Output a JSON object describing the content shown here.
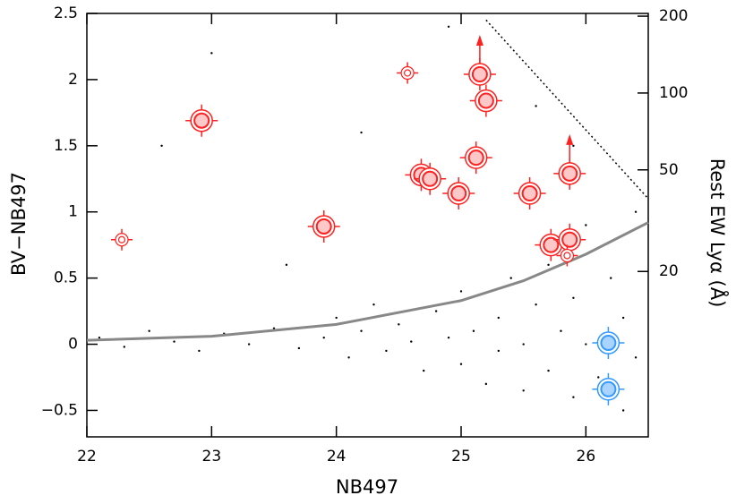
{
  "chart_data": {
    "type": "scatter",
    "xlabel": "NB497",
    "ylabel": "BV−NB497",
    "y2label": "Rest EW Lyα (Å)",
    "xlim": [
      22,
      26.5
    ],
    "ylim": [
      -0.7,
      2.5
    ],
    "xticks": [
      22,
      23,
      24,
      25,
      26
    ],
    "yticks": [
      {
        "value": -0.5,
        "label": "−0.5"
      },
      0,
      0.5,
      1,
      1.5,
      2,
      2.5
    ],
    "y2lim": [
      4.5,
      205
    ],
    "y2log": true,
    "y2ticks": [
      20,
      50,
      100,
      200
    ],
    "series": [
      {
        "type": "scatter",
        "marker": "dot",
        "color": "#000000",
        "x": [
          22.1,
          22.3,
          22.5,
          22.7,
          22.9,
          23.1,
          23.3,
          23.5,
          23.7,
          23.9,
          24.0,
          24.1,
          24.2,
          24.3,
          24.4,
          24.5,
          24.6,
          24.7,
          24.8,
          24.9,
          25.0,
          25.0,
          25.1,
          25.2,
          25.3,
          25.3,
          25.4,
          25.5,
          25.5,
          25.6,
          25.7,
          25.7,
          25.8,
          25.9,
          25.9,
          26.0,
          26.0,
          26.1,
          26.2,
          26.3,
          26.3,
          26.4,
          26.4,
          23.0,
          24.2,
          24.9,
          25.6,
          22.6,
          23.6,
          25.9
        ],
        "values": [
          0.05,
          -0.02,
          0.1,
          0.02,
          -0.05,
          0.08,
          0.0,
          0.12,
          -0.03,
          0.05,
          0.2,
          -0.1,
          0.1,
          0.3,
          -0.05,
          0.15,
          0.02,
          -0.2,
          0.25,
          0.05,
          -0.15,
          0.4,
          0.1,
          -0.3,
          0.2,
          -0.05,
          0.5,
          0.0,
          -0.35,
          0.3,
          -0.2,
          0.6,
          0.1,
          -0.4,
          0.35,
          0.0,
          0.9,
          -0.25,
          0.5,
          -0.5,
          0.2,
          1.0,
          -0.1,
          2.2,
          1.6,
          2.4,
          1.8,
          1.5,
          0.6,
          1.5
        ]
      },
      {
        "type": "line",
        "color": "#888888",
        "x": [
          22,
          23,
          24,
          25,
          25.5,
          26,
          26.5
        ],
        "values": [
          0.03,
          0.06,
          0.15,
          0.33,
          0.48,
          0.68,
          0.92
        ]
      },
      {
        "type": "line",
        "dash": true,
        "color": "#000000",
        "x": [
          25.2,
          26.5
        ],
        "values": [
          2.45,
          1.1
        ]
      },
      {
        "type": "scatter",
        "marker": "ring",
        "color": "#ff2020",
        "x": [
          22.92,
          23.9,
          25.15,
          25.2,
          25.12,
          24.68,
          24.75,
          24.98,
          25.55,
          25.87,
          25.72,
          25.87
        ],
        "values": [
          1.69,
          0.89,
          2.04,
          1.84,
          1.41,
          1.28,
          1.25,
          1.14,
          1.14,
          1.29,
          0.75,
          0.79
        ],
        "upper_limit": [
          false,
          false,
          true,
          false,
          false,
          false,
          false,
          false,
          false,
          true,
          false,
          false
        ]
      },
      {
        "type": "scatter",
        "marker": "open",
        "color": "#ff2020",
        "x": [
          22.28,
          24.57,
          25.85
        ],
        "values": [
          0.79,
          2.05,
          0.67
        ]
      },
      {
        "type": "scatter",
        "marker": "ring",
        "color": "#3399ff",
        "x": [
          26.18,
          26.18
        ],
        "values": [
          0.01,
          -0.34
        ]
      }
    ]
  }
}
